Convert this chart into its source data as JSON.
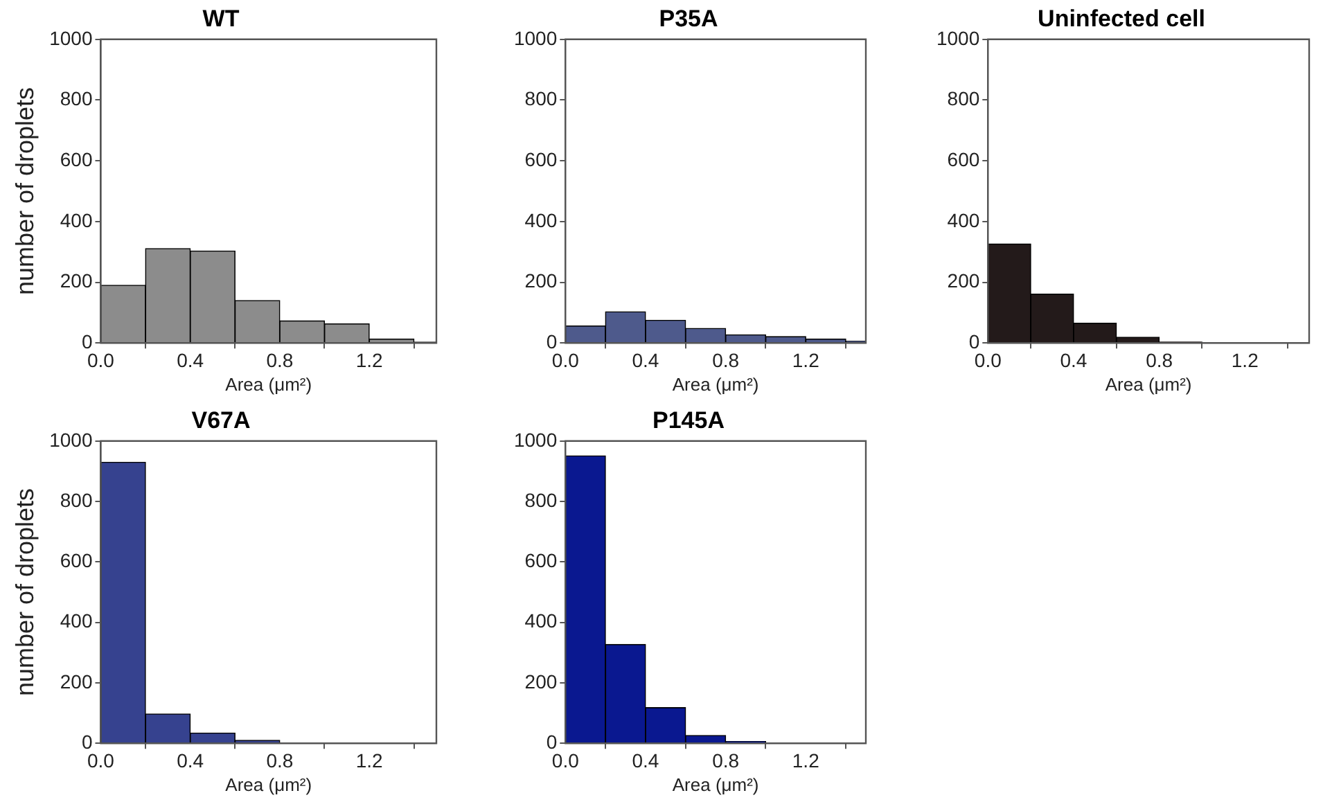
{
  "chart_data": [
    {
      "type": "histogram",
      "title": "WT",
      "xlabel": "Area (μm²)",
      "ylabel": "number of droplets",
      "bins": [
        0,
        0.2,
        0.4,
        0.6,
        0.8,
        1.0,
        1.2,
        1.4,
        1.5
      ],
      "values": [
        190,
        311,
        303,
        140,
        73,
        63,
        13,
        3
      ],
      "color": "#8c8c8c",
      "xlim": [
        0,
        1.5
      ],
      "ylim": [
        0,
        1000
      ],
      "xticks": [
        {
          "value": 0,
          "label": "0.0"
        },
        {
          "value": 0.4,
          "label": "0.4"
        },
        {
          "value": 0.8,
          "label": "0.8"
        },
        {
          "value": 1.2,
          "label": "1.2"
        }
      ],
      "yticks": [
        0,
        200,
        400,
        600,
        800,
        1000
      ]
    },
    {
      "type": "histogram",
      "title": "P35A",
      "xlabel": "Area (μm²)",
      "bins": [
        0,
        0.2,
        0.4,
        0.6,
        0.8,
        1.0,
        1.2,
        1.4,
        1.5
      ],
      "values": [
        56,
        103,
        75,
        48,
        27,
        21,
        13,
        6
      ],
      "color": "#4e5a8c",
      "xlim": [
        0,
        1.5
      ],
      "ylim": [
        0,
        1000
      ],
      "xticks": [
        {
          "value": 0,
          "label": "0.0"
        },
        {
          "value": 0.4,
          "label": "0.4"
        },
        {
          "value": 0.8,
          "label": "0.8"
        },
        {
          "value": 1.2,
          "label": "1.2"
        }
      ],
      "yticks": [
        0,
        200,
        400,
        600,
        800,
        1000
      ]
    },
    {
      "type": "histogram",
      "title": "Uninfected cell",
      "xlabel": "Area (μm²)",
      "bins": [
        0,
        0.2,
        0.4,
        0.6,
        0.8,
        1.0,
        1.2,
        1.4,
        1.5
      ],
      "values": [
        326,
        161,
        65,
        19,
        3,
        0,
        0,
        0
      ],
      "color": "#231a1a",
      "xlim": [
        0,
        1.5
      ],
      "ylim": [
        0,
        1000
      ],
      "xticks": [
        {
          "value": 0,
          "label": "0.0"
        },
        {
          "value": 0.4,
          "label": "0.4"
        },
        {
          "value": 0.8,
          "label": "0.8"
        },
        {
          "value": 1.2,
          "label": "1.2"
        }
      ],
      "yticks": [
        0,
        200,
        400,
        600,
        800,
        1000
      ]
    },
    {
      "type": "histogram",
      "title": "V67A",
      "xlabel": "Area (μm²)",
      "ylabel": "number of droplets",
      "bins": [
        0,
        0.2,
        0.4,
        0.6,
        0.8,
        1.0,
        1.2,
        1.4,
        1.5
      ],
      "values": [
        930,
        97,
        34,
        10,
        0,
        0,
        0,
        0
      ],
      "color": "#36428f",
      "xlim": [
        0,
        1.5
      ],
      "ylim": [
        0,
        1000
      ],
      "xticks": [
        {
          "value": 0,
          "label": "0.0"
        },
        {
          "value": 0.4,
          "label": "0.4"
        },
        {
          "value": 0.8,
          "label": "0.8"
        },
        {
          "value": 1.2,
          "label": "1.2"
        }
      ],
      "yticks": [
        0,
        200,
        400,
        600,
        800,
        1000
      ]
    },
    {
      "type": "histogram",
      "title": "P145A",
      "xlabel": "Area (μm²)",
      "bins": [
        0,
        0.2,
        0.4,
        0.6,
        0.8,
        1.0,
        1.2,
        1.4,
        1.5
      ],
      "values": [
        951,
        327,
        118,
        26,
        6,
        2,
        0,
        0
      ],
      "color": "#0a1890",
      "xlim": [
        0,
        1.5
      ],
      "ylim": [
        0,
        1000
      ],
      "xticks": [
        {
          "value": 0,
          "label": "0.0"
        },
        {
          "value": 0.4,
          "label": "0.4"
        },
        {
          "value": 0.8,
          "label": "0.8"
        },
        {
          "value": 1.2,
          "label": "1.2"
        }
      ],
      "yticks": [
        0,
        200,
        400,
        600,
        800,
        1000
      ]
    }
  ]
}
